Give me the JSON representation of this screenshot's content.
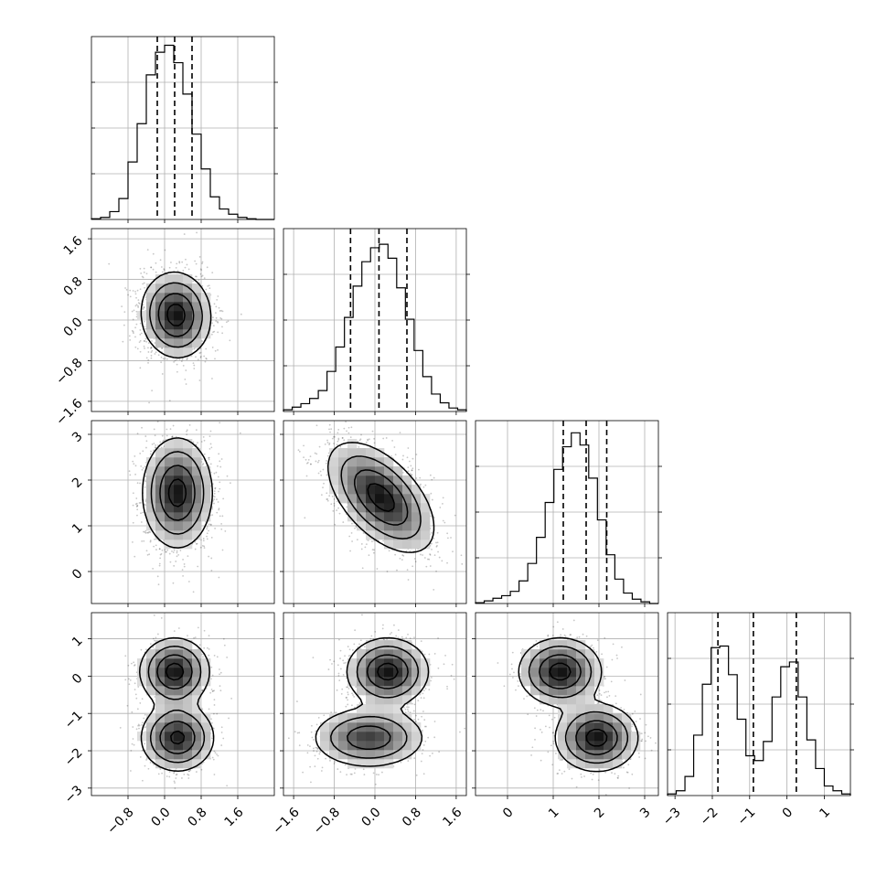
{
  "chart_data": {
    "type": "corner",
    "description_free": true,
    "grid": true,
    "parameters": [
      {
        "id": "p0",
        "range": [
          -1.6,
          2.4
        ],
        "ticks": [
          -0.8,
          0.0,
          0.8,
          1.6
        ],
        "tick_labels": [
          "−0.8",
          "0.0",
          "0.8",
          "1.6"
        ],
        "quantiles": [
          -0.16,
          0.22,
          0.6
        ],
        "hist": [
          0.004,
          0.012,
          0.045,
          0.12,
          0.33,
          0.55,
          0.83,
          0.96,
          1.0,
          0.9,
          0.72,
          0.49,
          0.29,
          0.13,
          0.06,
          0.03,
          0.012,
          0.004,
          0.0,
          0.0
        ],
        "hist_ylim": [
          0,
          1.05
        ]
      },
      {
        "id": "p1",
        "range": [
          -1.8,
          1.8
        ],
        "ticks": [
          -1.6,
          -0.8,
          0.0,
          0.8,
          1.6
        ],
        "tick_labels": [
          "−1.6",
          "−0.8",
          "0.0",
          "0.8",
          "1.6"
        ],
        "quantiles": [
          -0.48,
          0.08,
          0.63
        ],
        "hist": [
          0.01,
          0.025,
          0.045,
          0.075,
          0.12,
          0.23,
          0.37,
          0.54,
          0.72,
          0.86,
          0.94,
          0.96,
          0.88,
          0.71,
          0.53,
          0.35,
          0.2,
          0.1,
          0.05,
          0.02,
          0.01
        ],
        "hist_ylim": [
          0,
          1.05
        ]
      },
      {
        "id": "p2",
        "range": [
          -0.7,
          3.3
        ],
        "ticks": [
          0,
          1,
          2,
          3
        ],
        "tick_labels": [
          "0",
          "1",
          "2",
          "3"
        ],
        "quantiles": [
          1.22,
          1.72,
          2.17
        ],
        "hist": [
          0.005,
          0.015,
          0.03,
          0.045,
          0.07,
          0.13,
          0.23,
          0.38,
          0.58,
          0.77,
          0.9,
          0.98,
          0.91,
          0.72,
          0.48,
          0.28,
          0.14,
          0.06,
          0.025,
          0.01,
          0.0
        ],
        "hist_ylim": [
          0,
          1.05
        ]
      },
      {
        "id": "p3",
        "range": [
          -3.2,
          1.7
        ],
        "ticks": [
          -3,
          -2,
          -1,
          0,
          1
        ],
        "tick_labels": [
          "−3",
          "−2",
          "−1",
          "0",
          "1"
        ],
        "quantiles": [
          -1.85,
          -0.9,
          0.25
        ],
        "hist": [
          0.01,
          0.03,
          0.12,
          0.38,
          0.7,
          0.93,
          0.94,
          0.76,
          0.48,
          0.25,
          0.22,
          0.34,
          0.62,
          0.81,
          0.84,
          0.62,
          0.35,
          0.17,
          0.06,
          0.03,
          0.01
        ],
        "hist_ylim": [
          0,
          1.15
        ]
      }
    ],
    "pairs": [
      {
        "x": "p0",
        "y": "p1",
        "modes": [
          {
            "cx": 0.25,
            "cy": 0.1,
            "sx": 0.38,
            "sy": 0.42,
            "rho": -0.05,
            "weight": 1
          }
        ]
      },
      {
        "x": "p0",
        "y": "p2",
        "modes": [
          {
            "cx": 0.28,
            "cy": 1.72,
            "sx": 0.38,
            "sy": 0.6,
            "rho": 0.0,
            "weight": 1
          }
        ]
      },
      {
        "x": "p1",
        "y": "p2",
        "modes": [
          {
            "cx": 0.12,
            "cy": 1.62,
            "sx": 0.52,
            "sy": 0.6,
            "rho": -0.55,
            "weight": 1
          }
        ]
      },
      {
        "x": "p0",
        "y": "p3",
        "modes": [
          {
            "cx": 0.22,
            "cy": 0.12,
            "sx": 0.38,
            "sy": 0.45,
            "rho": 0.0,
            "weight": 0.5
          },
          {
            "cx": 0.28,
            "cy": -1.65,
            "sx": 0.4,
            "sy": 0.45,
            "rho": 0.0,
            "weight": 0.5
          }
        ]
      },
      {
        "x": "p1",
        "y": "p3",
        "modes": [
          {
            "cx": 0.25,
            "cy": 0.12,
            "sx": 0.4,
            "sy": 0.45,
            "rho": 0.0,
            "weight": 0.5
          },
          {
            "cx": -0.12,
            "cy": -1.65,
            "sx": 0.55,
            "sy": 0.4,
            "rho": 0.0,
            "weight": 0.5
          }
        ]
      },
      {
        "x": "p2",
        "y": "p3",
        "modes": [
          {
            "cx": 1.15,
            "cy": 0.12,
            "sx": 0.45,
            "sy": 0.45,
            "rho": 0.0,
            "weight": 0.5
          },
          {
            "cx": 1.95,
            "cy": -1.65,
            "sx": 0.45,
            "sy": 0.45,
            "rho": 0.0,
            "weight": 0.5
          }
        ]
      }
    ],
    "contour_levels_sigma": [
      0.5,
      1.0,
      1.5,
      2.0
    ]
  }
}
